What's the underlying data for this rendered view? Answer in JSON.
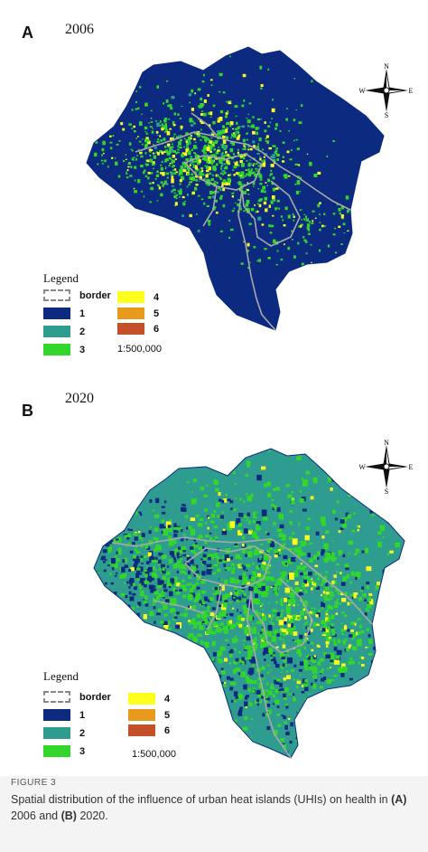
{
  "colors": {
    "class_1": "#0b2a80",
    "class_2": "#2e9c8f",
    "class_3": "#33d62a",
    "class_4": "#ffff1e",
    "class_5": "#e89a1c",
    "class_6": "#c4502a",
    "border": "#9a9a9a"
  },
  "panel_a": {
    "letter": "A",
    "year": "2006",
    "dominant_class": "1",
    "legend": {
      "title": "Legend",
      "items": [
        {
          "label": "border",
          "color": "border"
        },
        {
          "label": "1",
          "color": "#0b2a80"
        },
        {
          "label": "2",
          "color": "#2e9c8f"
        },
        {
          "label": "3",
          "color": "#33d62a"
        },
        {
          "label": "4",
          "color": "#ffff1e"
        },
        {
          "label": "5",
          "color": "#e89a1c"
        },
        {
          "label": "6",
          "color": "#c4502a"
        }
      ],
      "scale": "1:500,000"
    },
    "compass": {
      "n": "N",
      "s": "S",
      "e": "E",
      "w": "W"
    }
  },
  "panel_b": {
    "letter": "B",
    "year": "2020",
    "dominant_class": "2",
    "legend": {
      "title": "Legend",
      "items": [
        {
          "label": "border",
          "color": "border"
        },
        {
          "label": "1",
          "color": "#0b2a80"
        },
        {
          "label": "2",
          "color": "#2e9c8f"
        },
        {
          "label": "3",
          "color": "#33d62a"
        },
        {
          "label": "4",
          "color": "#ffff1e"
        },
        {
          "label": "5",
          "color": "#e89a1c"
        },
        {
          "label": "6",
          "color": "#c4502a"
        }
      ],
      "scale": "1:500,000"
    },
    "compass": {
      "n": "N",
      "s": "S",
      "e": "E",
      "w": "W"
    }
  },
  "caption": {
    "label": "FIGURE 3",
    "text_1": "Spatial distribution of the influence of urban heat islands (UHIs) on health in ",
    "ref_a": "(A)",
    "text_2": " 2006 and ",
    "ref_b": "(B)",
    "text_3": " 2020."
  }
}
